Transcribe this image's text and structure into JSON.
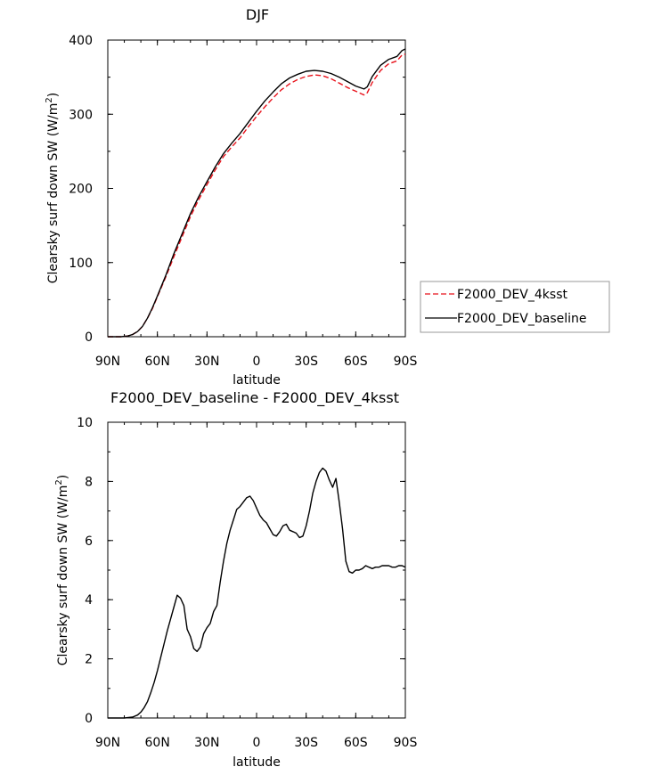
{
  "chart_data": [
    {
      "type": "line",
      "title": "DJF",
      "xlabel": "latitude",
      "ylabel": "Clearsky surf down SW (W/m²)",
      "ylabel_parts": {
        "main": "Clearsky surf down SW (W/m",
        "sup": "2",
        "close": ")"
      },
      "xlim": [
        90,
        -90
      ],
      "ylim": [
        0,
        400
      ],
      "x_tick_labels": [
        "90N",
        "60N",
        "30N",
        "0",
        "30S",
        "60S",
        "90S"
      ],
      "y_tick_labels": [
        "0",
        "100",
        "200",
        "300",
        "400"
      ],
      "legend": {
        "position": "right",
        "entries": [
          "F2000_DEV_4ksst",
          "F2000_DEV_baseline"
        ]
      },
      "series": [
        {
          "name": "F2000_DEV_4ksst",
          "color": "#e8111a",
          "dash": "dashed",
          "x": [
            90,
            82,
            78,
            75,
            72,
            69,
            66,
            63,
            60,
            55,
            50,
            45,
            40,
            35,
            30,
            25,
            20,
            15,
            10,
            5,
            0,
            -5,
            -10,
            -15,
            -20,
            -25,
            -30,
            -35,
            -40,
            -45,
            -50,
            -55,
            -60,
            -65,
            -67,
            -70,
            -75,
            -80,
            -85,
            -88,
            -90
          ],
          "y": [
            0,
            0,
            1,
            3,
            7,
            14,
            25,
            38,
            54,
            80,
            108,
            135,
            162,
            185,
            205,
            225,
            243,
            256,
            268,
            283,
            297,
            310,
            322,
            333,
            341,
            347,
            351,
            353,
            352,
            348,
            342,
            336,
            331,
            326,
            329,
            343,
            359,
            368,
            372,
            380,
            381
          ]
        },
        {
          "name": "F2000_DEV_baseline",
          "color": "#000000",
          "dash": "solid",
          "x": [
            90,
            82,
            78,
            75,
            72,
            69,
            66,
            63,
            60,
            55,
            50,
            45,
            40,
            35,
            30,
            25,
            20,
            15,
            10,
            5,
            0,
            -5,
            -10,
            -15,
            -20,
            -25,
            -30,
            -35,
            -40,
            -45,
            -50,
            -55,
            -60,
            -65,
            -67,
            -70,
            -75,
            -80,
            -85,
            -88,
            -90
          ],
          "y": [
            0,
            0,
            1,
            3,
            7,
            14,
            25,
            39,
            55,
            82,
            112,
            139,
            166,
            189,
            209,
            229,
            247,
            261,
            274,
            289,
            304,
            318,
            330,
            341,
            349,
            354,
            358,
            359,
            358,
            355,
            350,
            344,
            338,
            334,
            337,
            351,
            366,
            374,
            378,
            386,
            388
          ]
        }
      ]
    },
    {
      "type": "line",
      "title": "F2000_DEV_baseline - F2000_DEV_4ksst",
      "xlabel": "latitude",
      "ylabel": "Clearsky surf down SW (W/m²)",
      "ylabel_parts": {
        "main": "Clearsky surf down SW (W/m",
        "sup": "2",
        "close": ")"
      },
      "xlim": [
        90,
        -90
      ],
      "ylim": [
        0,
        10
      ],
      "x_tick_labels": [
        "90N",
        "60N",
        "30N",
        "0",
        "30S",
        "60S",
        "90S"
      ],
      "y_tick_labels": [
        "0",
        "2",
        "4",
        "6",
        "8",
        "10"
      ],
      "series": [
        {
          "name": "F2000_DEV_baseline - F2000_DEV_4ksst",
          "color": "#000000",
          "dash": "solid",
          "x": [
            90,
            80,
            75,
            72,
            70,
            68,
            66,
            64,
            62,
            60,
            58,
            56,
            54,
            52,
            50,
            48,
            46,
            44,
            42,
            40,
            38,
            36,
            34,
            32,
            30,
            28,
            26,
            24,
            22,
            20,
            18,
            16,
            14,
            12,
            10,
            8,
            6,
            4,
            2,
            0,
            -2,
            -4,
            -6,
            -8,
            -10,
            -12,
            -14,
            -16,
            -18,
            -20,
            -22,
            -24,
            -26,
            -28,
            -30,
            -32,
            -34,
            -36,
            -38,
            -40,
            -42,
            -44,
            -46,
            -48,
            -50,
            -52,
            -54,
            -56,
            -58,
            -60,
            -62,
            -64,
            -66,
            -68,
            -70,
            -72,
            -74,
            -76,
            -78,
            -80,
            -82,
            -84,
            -86,
            -88,
            -90
          ],
          "y": [
            0,
            0,
            0.03,
            0.1,
            0.2,
            0.35,
            0.55,
            0.85,
            1.2,
            1.6,
            2.05,
            2.5,
            2.95,
            3.35,
            3.75,
            4.15,
            4.05,
            3.8,
            3.0,
            2.75,
            2.35,
            2.25,
            2.4,
            2.85,
            3.05,
            3.2,
            3.6,
            3.8,
            4.6,
            5.3,
            5.9,
            6.35,
            6.7,
            7.05,
            7.15,
            7.3,
            7.45,
            7.5,
            7.35,
            7.1,
            6.85,
            6.7,
            6.6,
            6.4,
            6.2,
            6.15,
            6.3,
            6.5,
            6.55,
            6.35,
            6.3,
            6.25,
            6.1,
            6.15,
            6.5,
            7.0,
            7.6,
            8.0,
            8.3,
            8.45,
            8.35,
            8.05,
            7.8,
            8.1,
            7.3,
            6.4,
            5.3,
            4.95,
            4.9,
            5.0,
            5.0,
            5.05,
            5.15,
            5.1,
            5.05,
            5.1,
            5.1,
            5.15,
            5.15,
            5.15,
            5.1,
            5.1,
            5.15,
            5.15,
            5.1
          ]
        }
      ]
    }
  ]
}
